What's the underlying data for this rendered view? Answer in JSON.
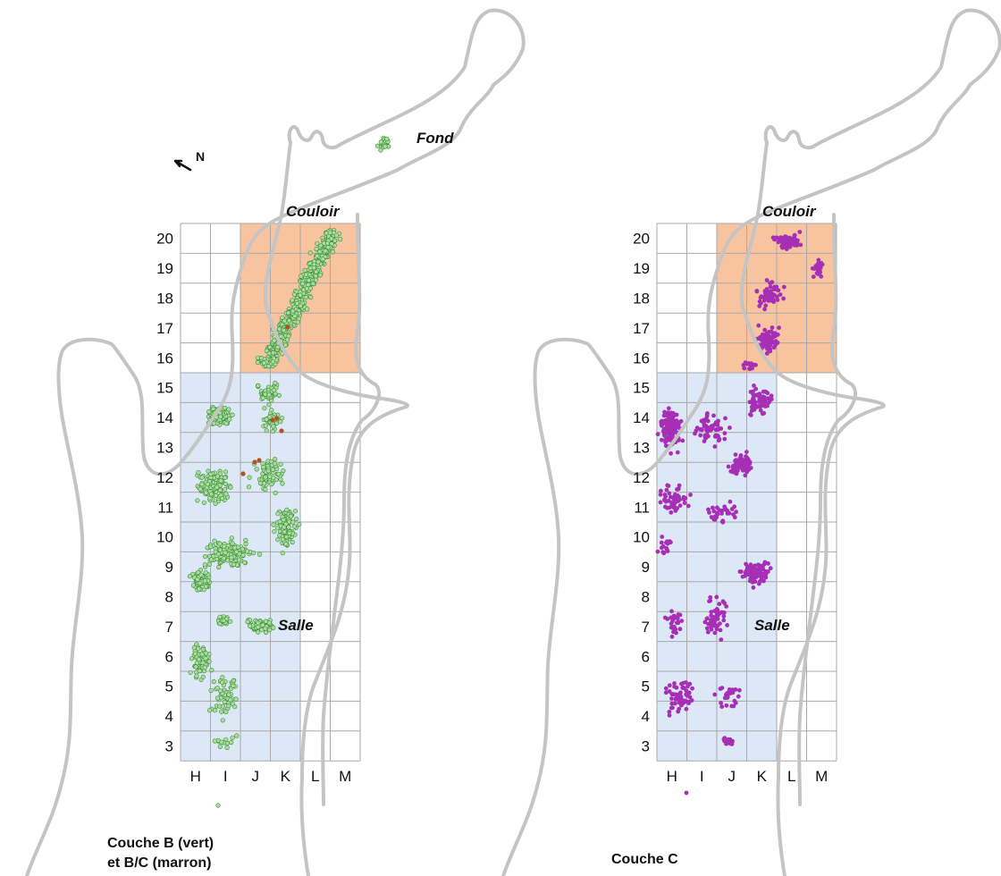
{
  "north_label": "N",
  "zones": {
    "fond": "Fond",
    "couloir": "Couloir",
    "salle": "Salle"
  },
  "grid": {
    "columns": [
      "H",
      "I",
      "J",
      "K",
      "L",
      "M"
    ],
    "rows": [
      "20",
      "19",
      "18",
      "17",
      "16",
      "15",
      "14",
      "13",
      "12",
      "11",
      "10",
      "9",
      "8",
      "7",
      "6",
      "5",
      "4",
      "3"
    ],
    "couloir_area": {
      "columns": [
        "J",
        "K",
        "L",
        "M"
      ],
      "rows": [
        "20",
        "19",
        "18",
        "17",
        "16"
      ],
      "color": "#f8c49f"
    },
    "salle_area": {
      "columns": [
        "H",
        "I",
        "J",
        "K"
      ],
      "rows": [
        "15",
        "14",
        "13",
        "12",
        "11",
        "10",
        "9",
        "8",
        "7",
        "6",
        "5",
        "4",
        "3"
      ],
      "color": "#dce8f5"
    }
  },
  "panels": [
    {
      "id": "left",
      "caption_lines": [
        "Couche B (vert)",
        "et B/C (marron)"
      ],
      "point_color": "#a9dda0",
      "point_stroke": "#3a8a33",
      "accent_color": "#b0512b"
    },
    {
      "id": "right",
      "caption_lines": [
        "Couche C"
      ],
      "point_color": "#a62fb5",
      "point_stroke": "#a62fb5"
    }
  ]
}
